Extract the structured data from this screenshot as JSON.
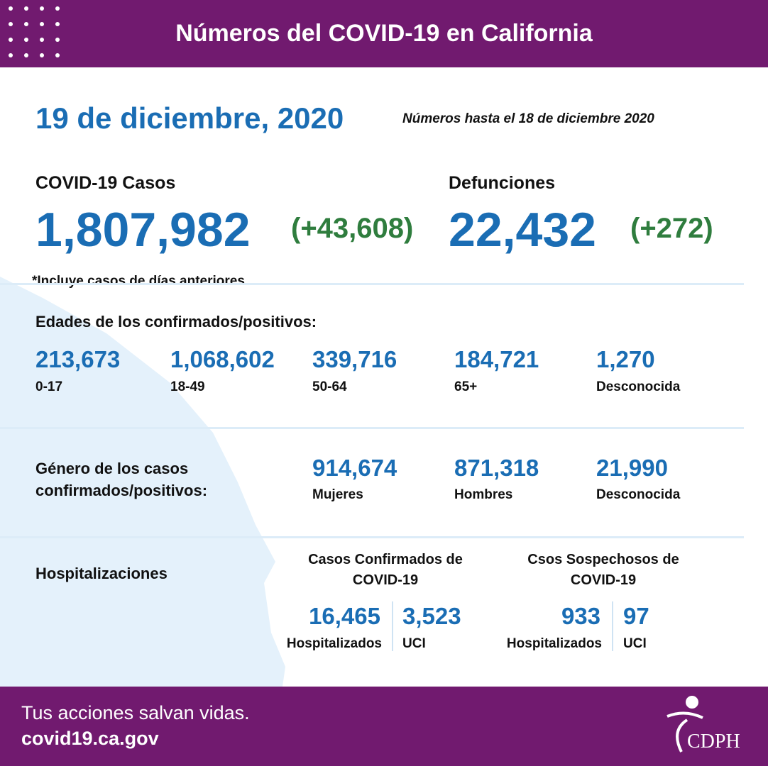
{
  "header": {
    "title": "Números del COVID-19 en California"
  },
  "date": "19 de diciembre, 2020",
  "as_of": "Números hasta el 18 de diciembre 2020",
  "cases": {
    "label": "COVID-19 Casos",
    "total": "1,807,982",
    "change": "(+43,608)",
    "note": "*Incluye casos de días anteriores"
  },
  "deaths": {
    "label": "Defunciones",
    "total": "22,432",
    "change": "(+272)"
  },
  "ages": {
    "title": "Edades de los confirmados/positivos:",
    "groups": [
      {
        "value": "213,673",
        "label": "0-17"
      },
      {
        "value": "1,068,602",
        "label": "18-49"
      },
      {
        "value": "339,716",
        "label": "50-64"
      },
      {
        "value": "184,721",
        "label": "65+"
      },
      {
        "value": "1,270",
        "label": "Desconocida"
      }
    ]
  },
  "gender": {
    "title": "Género de los casos confirmados/positivos:",
    "groups": [
      {
        "value": "914,674",
        "label": "Mujeres"
      },
      {
        "value": "871,318",
        "label": "Hombres"
      },
      {
        "value": "21,990",
        "label": "Desconocida"
      }
    ]
  },
  "hospitalizations": {
    "title": "Hospitalizaciones",
    "confirmed": {
      "title": "Casos Confirmados de COVID-19",
      "hospitalized": {
        "value": "16,465",
        "label": "Hospitalizados"
      },
      "icu": {
        "value": "3,523",
        "label": "UCI"
      }
    },
    "suspected": {
      "title": "Csos Sospechosos de COVID-19",
      "hospitalized": {
        "value": "933",
        "label": "Hospitalizados"
      },
      "icu": {
        "value": "97",
        "label": "UCI"
      }
    }
  },
  "footer": {
    "tagline": "Tus acciones salvan vidas.",
    "url": "covid19.ca.gov",
    "logo": "CDPH"
  }
}
